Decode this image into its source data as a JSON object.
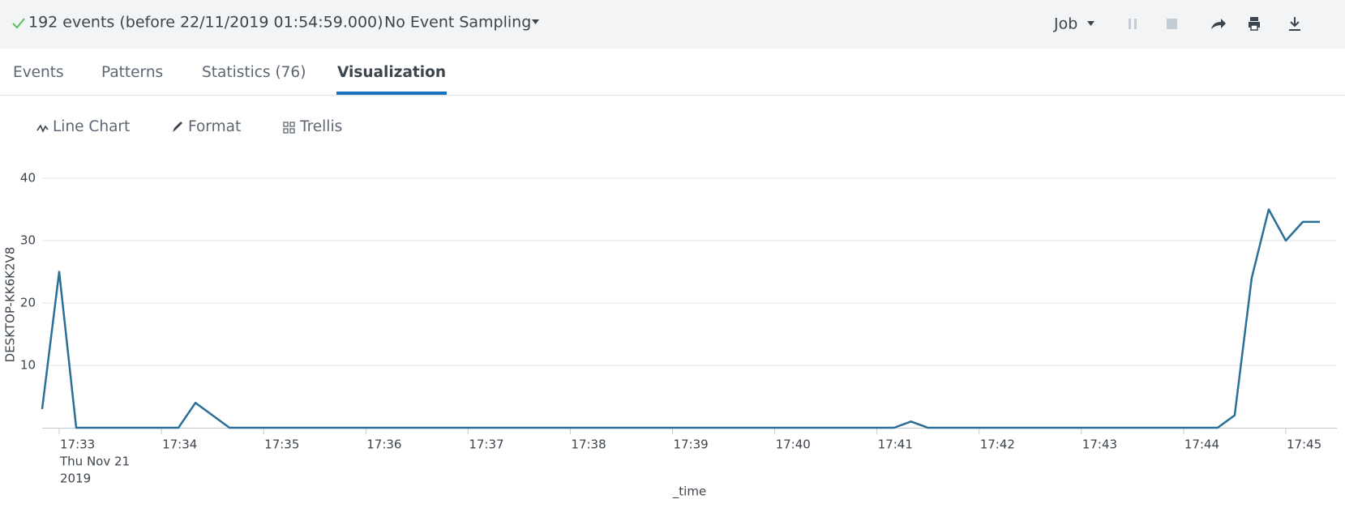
{
  "header": {
    "status": "192 events (before 22/11/2019 01:54:59.000)",
    "sampling": "No Event Sampling",
    "job": "Job"
  },
  "tabs": [
    "Events",
    "Patterns",
    "Statistics (76)",
    "Visualization"
  ],
  "active_tab": 3,
  "toolbar": [
    "Line Chart",
    "Format",
    "Trellis"
  ],
  "chart_data": {
    "type": "line",
    "x_label": "_time",
    "x_date_label": [
      "Thu Nov 21",
      "2019"
    ],
    "x": [
      "17:32:50",
      "17:33:00",
      "17:33:10",
      "17:33:20",
      "17:33:30",
      "17:33:40",
      "17:33:50",
      "17:34:00",
      "17:34:10",
      "17:34:20",
      "17:34:30",
      "17:34:40",
      "17:34:50",
      "17:35:00",
      "17:35:10",
      "17:35:20",
      "17:35:30",
      "17:35:40",
      "17:35:50",
      "17:36:00",
      "17:36:10",
      "17:36:20",
      "17:36:30",
      "17:36:40",
      "17:36:50",
      "17:37:00",
      "17:37:10",
      "17:37:20",
      "17:37:30",
      "17:37:40",
      "17:37:50",
      "17:38:00",
      "17:38:10",
      "17:38:20",
      "17:38:30",
      "17:38:40",
      "17:38:50",
      "17:39:00",
      "17:39:10",
      "17:39:20",
      "17:39:30",
      "17:39:40",
      "17:39:50",
      "17:40:00",
      "17:40:10",
      "17:40:20",
      "17:40:30",
      "17:40:40",
      "17:40:50",
      "17:41:00",
      "17:41:10",
      "17:41:20",
      "17:41:30",
      "17:41:40",
      "17:41:50",
      "17:42:00",
      "17:42:10",
      "17:42:20",
      "17:42:30",
      "17:42:40",
      "17:42:50",
      "17:43:00",
      "17:43:10",
      "17:43:20",
      "17:43:30",
      "17:43:40",
      "17:43:50",
      "17:44:00",
      "17:44:10",
      "17:44:20",
      "17:44:30",
      "17:44:40",
      "17:44:50",
      "17:45:00",
      "17:45:10",
      "17:45:20"
    ],
    "series": [
      {
        "name": "DESKTOP-KK6K2V8",
        "color": "#2a6f97",
        "values": [
          3,
          25,
          0,
          0,
          0,
          0,
          0,
          0,
          0,
          4,
          2,
          0,
          0,
          0,
          0,
          0,
          0,
          0,
          0,
          0,
          0,
          0,
          0,
          0,
          0,
          0,
          0,
          0,
          0,
          0,
          0,
          0,
          0,
          0,
          0,
          0,
          0,
          0,
          0,
          0,
          0,
          0,
          0,
          0,
          0,
          0,
          0,
          0,
          0,
          0,
          0,
          1,
          0,
          0,
          0,
          0,
          0,
          0,
          0,
          0,
          0,
          0,
          0,
          0,
          0,
          0,
          0,
          0,
          0,
          0,
          2,
          24,
          35,
          30,
          33,
          33
        ]
      }
    ],
    "xlim": [
      "17:32:50",
      "17:45:30"
    ],
    "xticks": [
      "17:33",
      "17:34",
      "17:35",
      "17:36",
      "17:37",
      "17:38",
      "17:39",
      "17:40",
      "17:41",
      "17:42",
      "17:43",
      "17:44",
      "17:45"
    ],
    "ylim": [
      0,
      40
    ],
    "yticks": [
      10,
      20,
      30,
      40
    ],
    "grid": true
  }
}
